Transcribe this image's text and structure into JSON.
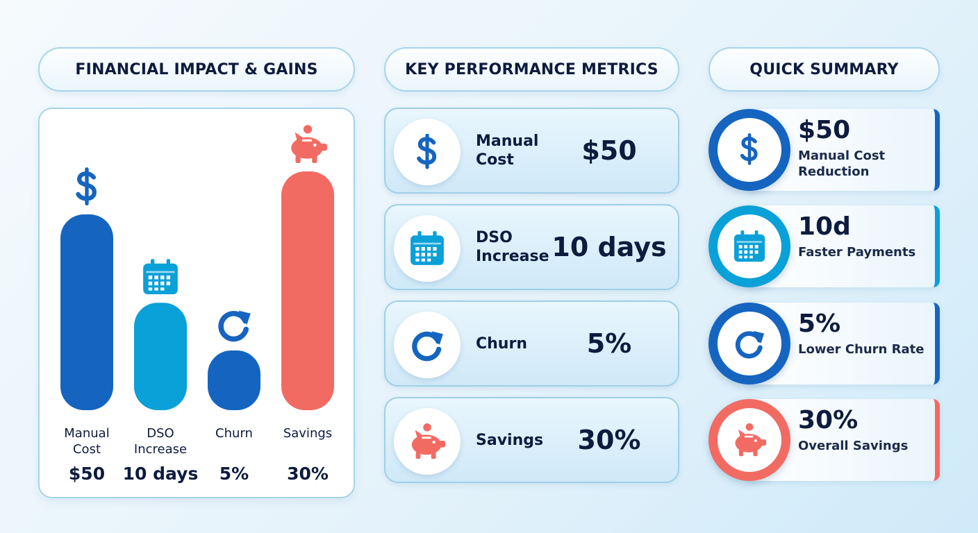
{
  "headers": {
    "financial": "FINANCIAL IMPACT & GAINS",
    "kpi": "KEY PERFORMANCE METRICS",
    "summary": "QUICK SUMMARY"
  },
  "chart_data": {
    "type": "bar",
    "categories": [
      "Manual Cost",
      "DSO Increase",
      "Churn",
      "Savings"
    ],
    "value_labels": [
      "$50",
      "10 days",
      "5%",
      "30%"
    ],
    "bar_levels": [
      0.82,
      0.45,
      0.25,
      1.0
    ],
    "colors": [
      "#1565c0",
      "#0aa0d8",
      "#1565c0",
      "#f26b63"
    ],
    "icons": [
      "dollar-icon",
      "calendar-icon",
      "refresh-icon",
      "piggy-bank-icon"
    ],
    "title": "",
    "xlabel": "",
    "ylabel": ""
  },
  "metrics": [
    {
      "label": "Manual Cost",
      "value": "$50",
      "icon": "dollar-icon",
      "color": "#1565c0"
    },
    {
      "label": "DSO Increase",
      "value": "10 days",
      "icon": "calendar-icon",
      "color": "#0aa0d8"
    },
    {
      "label": "Churn",
      "value": "5%",
      "icon": "refresh-icon",
      "color": "#1565c0"
    },
    {
      "label": "Savings",
      "value": "30%",
      "icon": "piggy-bank-icon",
      "color": "#f26b63"
    }
  ],
  "summary": [
    {
      "value": "$50",
      "caption": "Manual Cost Reduction",
      "icon": "dollar-icon",
      "color": "#1565c0"
    },
    {
      "value": "10d",
      "caption": "Faster Payments",
      "icon": "calendar-icon",
      "color": "#0aa0d8"
    },
    {
      "value": "5%",
      "caption": "Lower Churn Rate",
      "icon": "refresh-icon",
      "color": "#1565c0"
    },
    {
      "value": "30%",
      "caption": "Overall Savings",
      "icon": "piggy-bank-icon",
      "color": "#f26b63"
    }
  ]
}
